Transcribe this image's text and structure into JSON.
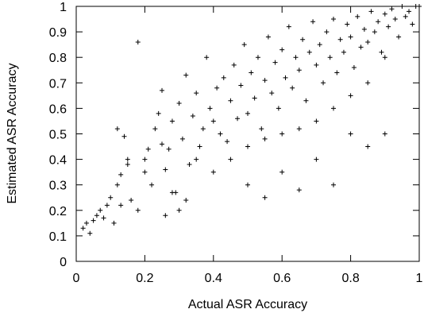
{
  "chart_data": {
    "type": "scatter",
    "xlabel": "Actual ASR Accuracy",
    "ylabel": "Estimated ASR Accuracy",
    "xlim": [
      0,
      1
    ],
    "ylim": [
      0,
      1
    ],
    "x_ticks": [
      "0",
      "0.2",
      "0.4",
      "0.6",
      "0.8",
      "1"
    ],
    "y_ticks": [
      "0",
      "0.1",
      "0.2",
      "0.3",
      "0.4",
      "0.5",
      "0.6",
      "0.7",
      "0.8",
      "0.9",
      "1"
    ],
    "grid": false,
    "marker": "+",
    "color": "#000000",
    "points": [
      [
        0.02,
        0.13
      ],
      [
        0.03,
        0.15
      ],
      [
        0.04,
        0.11
      ],
      [
        0.05,
        0.16
      ],
      [
        0.06,
        0.18
      ],
      [
        0.07,
        0.2
      ],
      [
        0.08,
        0.17
      ],
      [
        0.09,
        0.22
      ],
      [
        0.1,
        0.25
      ],
      [
        0.12,
        0.3
      ],
      [
        0.13,
        0.34
      ],
      [
        0.15,
        0.4
      ],
      [
        0.14,
        0.49
      ],
      [
        0.12,
        0.52
      ],
      [
        0.11,
        0.15
      ],
      [
        0.13,
        0.22
      ],
      [
        0.16,
        0.24
      ],
      [
        0.18,
        0.86
      ],
      [
        0.18,
        0.2
      ],
      [
        0.2,
        0.35
      ],
      [
        0.21,
        0.44
      ],
      [
        0.22,
        0.3
      ],
      [
        0.23,
        0.52
      ],
      [
        0.24,
        0.58
      ],
      [
        0.25,
        0.67
      ],
      [
        0.26,
        0.36
      ],
      [
        0.27,
        0.44
      ],
      [
        0.28,
        0.55
      ],
      [
        0.29,
        0.27
      ],
      [
        0.3,
        0.62
      ],
      [
        0.31,
        0.48
      ],
      [
        0.32,
        0.73
      ],
      [
        0.33,
        0.38
      ],
      [
        0.34,
        0.57
      ],
      [
        0.35,
        0.66
      ],
      [
        0.36,
        0.45
      ],
      [
        0.37,
        0.52
      ],
      [
        0.38,
        0.8
      ],
      [
        0.39,
        0.6
      ],
      [
        0.4,
        0.55
      ],
      [
        0.41,
        0.68
      ],
      [
        0.42,
        0.5
      ],
      [
        0.43,
        0.72
      ],
      [
        0.44,
        0.47
      ],
      [
        0.45,
        0.63
      ],
      [
        0.46,
        0.77
      ],
      [
        0.47,
        0.56
      ],
      [
        0.48,
        0.69
      ],
      [
        0.49,
        0.85
      ],
      [
        0.5,
        0.58
      ],
      [
        0.51,
        0.74
      ],
      [
        0.52,
        0.64
      ],
      [
        0.53,
        0.8
      ],
      [
        0.54,
        0.52
      ],
      [
        0.55,
        0.71
      ],
      [
        0.56,
        0.88
      ],
      [
        0.57,
        0.66
      ],
      [
        0.58,
        0.78
      ],
      [
        0.59,
        0.6
      ],
      [
        0.6,
        0.83
      ],
      [
        0.61,
        0.72
      ],
      [
        0.62,
        0.92
      ],
      [
        0.63,
        0.68
      ],
      [
        0.64,
        0.8
      ],
      [
        0.65,
        0.75
      ],
      [
        0.66,
        0.87
      ],
      [
        0.67,
        0.63
      ],
      [
        0.68,
        0.82
      ],
      [
        0.69,
        0.94
      ],
      [
        0.7,
        0.77
      ],
      [
        0.71,
        0.85
      ],
      [
        0.72,
        0.7
      ],
      [
        0.73,
        0.9
      ],
      [
        0.74,
        0.8
      ],
      [
        0.75,
        0.95
      ],
      [
        0.76,
        0.74
      ],
      [
        0.77,
        0.87
      ],
      [
        0.78,
        0.82
      ],
      [
        0.79,
        0.93
      ],
      [
        0.8,
        0.88
      ],
      [
        0.81,
        0.76
      ],
      [
        0.82,
        0.96
      ],
      [
        0.83,
        0.84
      ],
      [
        0.84,
        0.91
      ],
      [
        0.85,
        0.86
      ],
      [
        0.86,
        0.98
      ],
      [
        0.87,
        0.9
      ],
      [
        0.88,
        0.94
      ],
      [
        0.89,
        0.82
      ],
      [
        0.9,
        0.97
      ],
      [
        0.91,
        0.92
      ],
      [
        0.92,
        0.99
      ],
      [
        0.93,
        0.95
      ],
      [
        0.94,
        0.88
      ],
      [
        0.95,
        1.0
      ],
      [
        0.96,
        0.96
      ],
      [
        0.97,
        0.98
      ],
      [
        0.98,
        0.93
      ],
      [
        0.99,
        1.0
      ],
      [
        1.0,
        1.0
      ],
      [
        0.35,
        0.4
      ],
      [
        0.4,
        0.35
      ],
      [
        0.45,
        0.4
      ],
      [
        0.5,
        0.45
      ],
      [
        0.55,
        0.48
      ],
      [
        0.6,
        0.5
      ],
      [
        0.65,
        0.52
      ],
      [
        0.7,
        0.55
      ],
      [
        0.75,
        0.6
      ],
      [
        0.8,
        0.65
      ],
      [
        0.85,
        0.7
      ],
      [
        0.9,
        0.8
      ],
      [
        0.5,
        0.3
      ],
      [
        0.55,
        0.25
      ],
      [
        0.6,
        0.35
      ],
      [
        0.65,
        0.28
      ],
      [
        0.7,
        0.4
      ],
      [
        0.75,
        0.3
      ],
      [
        0.8,
        0.5
      ],
      [
        0.85,
        0.45
      ],
      [
        0.9,
        0.5
      ],
      [
        0.28,
        0.27
      ],
      [
        0.3,
        0.2
      ],
      [
        0.26,
        0.18
      ],
      [
        0.32,
        0.24
      ],
      [
        0.2,
        0.4
      ],
      [
        0.25,
        0.46
      ],
      [
        0.15,
        0.38
      ]
    ]
  }
}
